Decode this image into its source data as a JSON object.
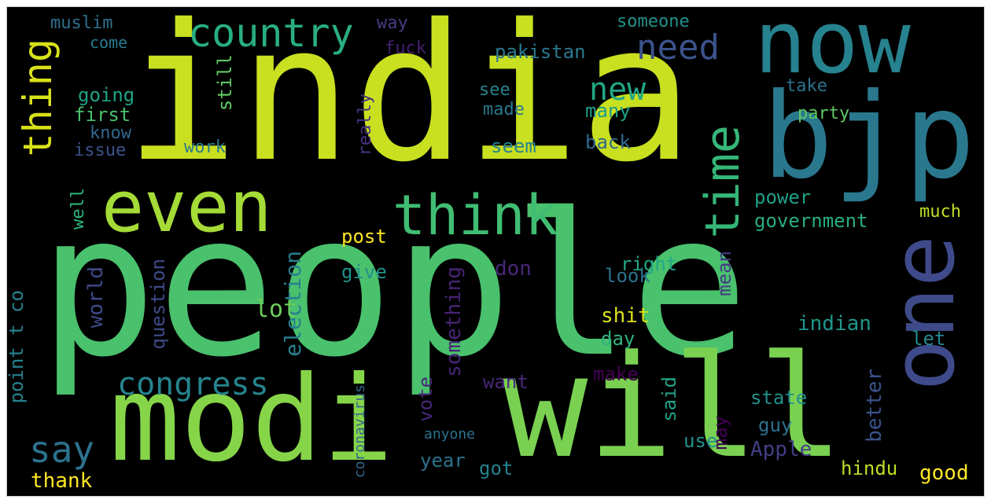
{
  "title": "",
  "words": [
    {
      "text": "india",
      "color": "#c8e020",
      "orientation": "horizontal"
    },
    {
      "text": "people",
      "color": "#4ac16d",
      "orientation": "horizontal"
    },
    {
      "text": "modi",
      "color": "#86d549",
      "orientation": "horizontal"
    },
    {
      "text": "will",
      "color": "#7ad151",
      "orientation": "horizontal"
    },
    {
      "text": "now",
      "color": "#26828e",
      "orientation": "horizontal"
    },
    {
      "text": "bjp",
      "color": "#2a788e",
      "orientation": "horizontal"
    },
    {
      "text": "one",
      "color": "#3e4a89",
      "orientation": "vertical"
    },
    {
      "text": "even",
      "color": "#a5db36",
      "orientation": "horizontal"
    },
    {
      "text": "think",
      "color": "#40bd72",
      "orientation": "horizontal"
    },
    {
      "text": "thing",
      "color": "#d8e219",
      "orientation": "vertical"
    },
    {
      "text": "time",
      "color": "#35b779",
      "orientation": "vertical"
    },
    {
      "text": "country",
      "color": "#29af7f",
      "orientation": "horizontal"
    },
    {
      "text": "need",
      "color": "#3b528b",
      "orientation": "horizontal"
    },
    {
      "text": "congress",
      "color": "#25848e",
      "orientation": "horizontal"
    },
    {
      "text": "say",
      "color": "#2c728e",
      "orientation": "horizontal"
    },
    {
      "text": "new",
      "color": "#22a785",
      "orientation": "horizontal"
    },
    {
      "text": "muslim",
      "color": "#2d708e",
      "orientation": "horizontal"
    },
    {
      "text": "way",
      "color": "#433e85",
      "orientation": "horizontal"
    },
    {
      "text": "fuck",
      "color": "#481f70",
      "orientation": "horizontal"
    },
    {
      "text": "come",
      "color": "#287c8e",
      "orientation": "horizontal"
    },
    {
      "text": "pakistan",
      "color": "#2a788e",
      "orientation": "horizontal"
    },
    {
      "text": "someone",
      "color": "#21918c",
      "orientation": "horizontal"
    },
    {
      "text": "going",
      "color": "#20a486",
      "orientation": "horizontal"
    },
    {
      "text": "first",
      "color": "#4ac16d",
      "orientation": "horizontal"
    },
    {
      "text": "know",
      "color": "#31688e",
      "orientation": "horizontal"
    },
    {
      "text": "issue",
      "color": "#3b528b",
      "orientation": "horizontal"
    },
    {
      "text": "work",
      "color": "#2a788e",
      "orientation": "horizontal"
    },
    {
      "text": "still",
      "color": "#5ec962",
      "orientation": "vertical"
    },
    {
      "text": "see",
      "color": "#26828e",
      "orientation": "horizontal"
    },
    {
      "text": "made",
      "color": "#2a788e",
      "orientation": "horizontal"
    },
    {
      "text": "many",
      "color": "#1f9e89",
      "orientation": "horizontal"
    },
    {
      "text": "really",
      "color": "#46337f",
      "orientation": "vertical"
    },
    {
      "text": "seem",
      "color": "#26828e",
      "orientation": "horizontal"
    },
    {
      "text": "back",
      "color": "#31688e",
      "orientation": "horizontal"
    },
    {
      "text": "take",
      "color": "#2c728e",
      "orientation": "horizontal"
    },
    {
      "text": "party",
      "color": "#5ec962",
      "orientation": "horizontal"
    },
    {
      "text": "mean",
      "color": "#443983",
      "orientation": "vertical"
    },
    {
      "text": "power",
      "color": "#1fa088",
      "orientation": "horizontal"
    },
    {
      "text": "government",
      "color": "#27ad81",
      "orientation": "horizontal"
    },
    {
      "text": "much",
      "color": "#bddf26",
      "orientation": "horizontal"
    },
    {
      "text": "post",
      "color": "#fde725",
      "orientation": "horizontal"
    },
    {
      "text": "right",
      "color": "#22a785",
      "orientation": "horizontal"
    },
    {
      "text": "well",
      "color": "#2fb47c",
      "orientation": "vertical"
    },
    {
      "text": "election",
      "color": "#277f8e",
      "orientation": "vertical"
    },
    {
      "text": "look",
      "color": "#2c728e",
      "orientation": "horizontal"
    },
    {
      "text": "give",
      "color": "#21918c",
      "orientation": "horizontal"
    },
    {
      "text": "don",
      "color": "#482878",
      "orientation": "horizontal"
    },
    {
      "text": "world",
      "color": "#3e4a89",
      "orientation": "vertical"
    },
    {
      "text": "lot",
      "color": "#6ccd5a",
      "orientation": "horizontal"
    },
    {
      "text": "question",
      "color": "#3e4a89",
      "orientation": "vertical"
    },
    {
      "text": "something",
      "color": "#482475",
      "orientation": "vertical"
    },
    {
      "text": "shit",
      "color": "#d8e219",
      "orientation": "horizontal"
    },
    {
      "text": "day",
      "color": "#2fb47c",
      "orientation": "horizontal"
    },
    {
      "text": "indian",
      "color": "#1f968b",
      "orientation": "horizontal"
    },
    {
      "text": "let",
      "color": "#23898e",
      "orientation": "horizontal"
    },
    {
      "text": "point t co",
      "color": "#26828e",
      "orientation": "vertical"
    },
    {
      "text": "vote",
      "color": "#482878",
      "orientation": "vertical"
    },
    {
      "text": "want",
      "color": "#482878",
      "orientation": "horizontal"
    },
    {
      "text": "make",
      "color": "#440154",
      "orientation": "horizontal"
    },
    {
      "text": "said",
      "color": "#20a486",
      "orientation": "vertical"
    },
    {
      "text": "may",
      "color": "#440154",
      "orientation": "vertical"
    },
    {
      "text": "state",
      "color": "#21918c",
      "orientation": "horizontal"
    },
    {
      "text": "better",
      "color": "#3b528b",
      "orientation": "vertical"
    },
    {
      "text": "guy",
      "color": "#2c728e",
      "orientation": "horizontal"
    },
    {
      "text": "Apple",
      "color": "#433e85",
      "orientation": "horizontal"
    },
    {
      "text": "use",
      "color": "#21918c",
      "orientation": "horizontal"
    },
    {
      "text": "year",
      "color": "#2c728e",
      "orientation": "horizontal"
    },
    {
      "text": "got",
      "color": "#26828e",
      "orientation": "horizontal"
    },
    {
      "text": "thank",
      "color": "#fde725",
      "orientation": "horizontal"
    },
    {
      "text": "hindu",
      "color": "#bddf26",
      "orientation": "horizontal"
    },
    {
      "text": "good",
      "color": "#fde725",
      "orientation": "horizontal"
    },
    {
      "text": "anyone",
      "color": "#2c728e",
      "orientation": "horizontal"
    },
    {
      "text": "coronavirus",
      "color": "#31688e",
      "orientation": "vertical"
    }
  ]
}
